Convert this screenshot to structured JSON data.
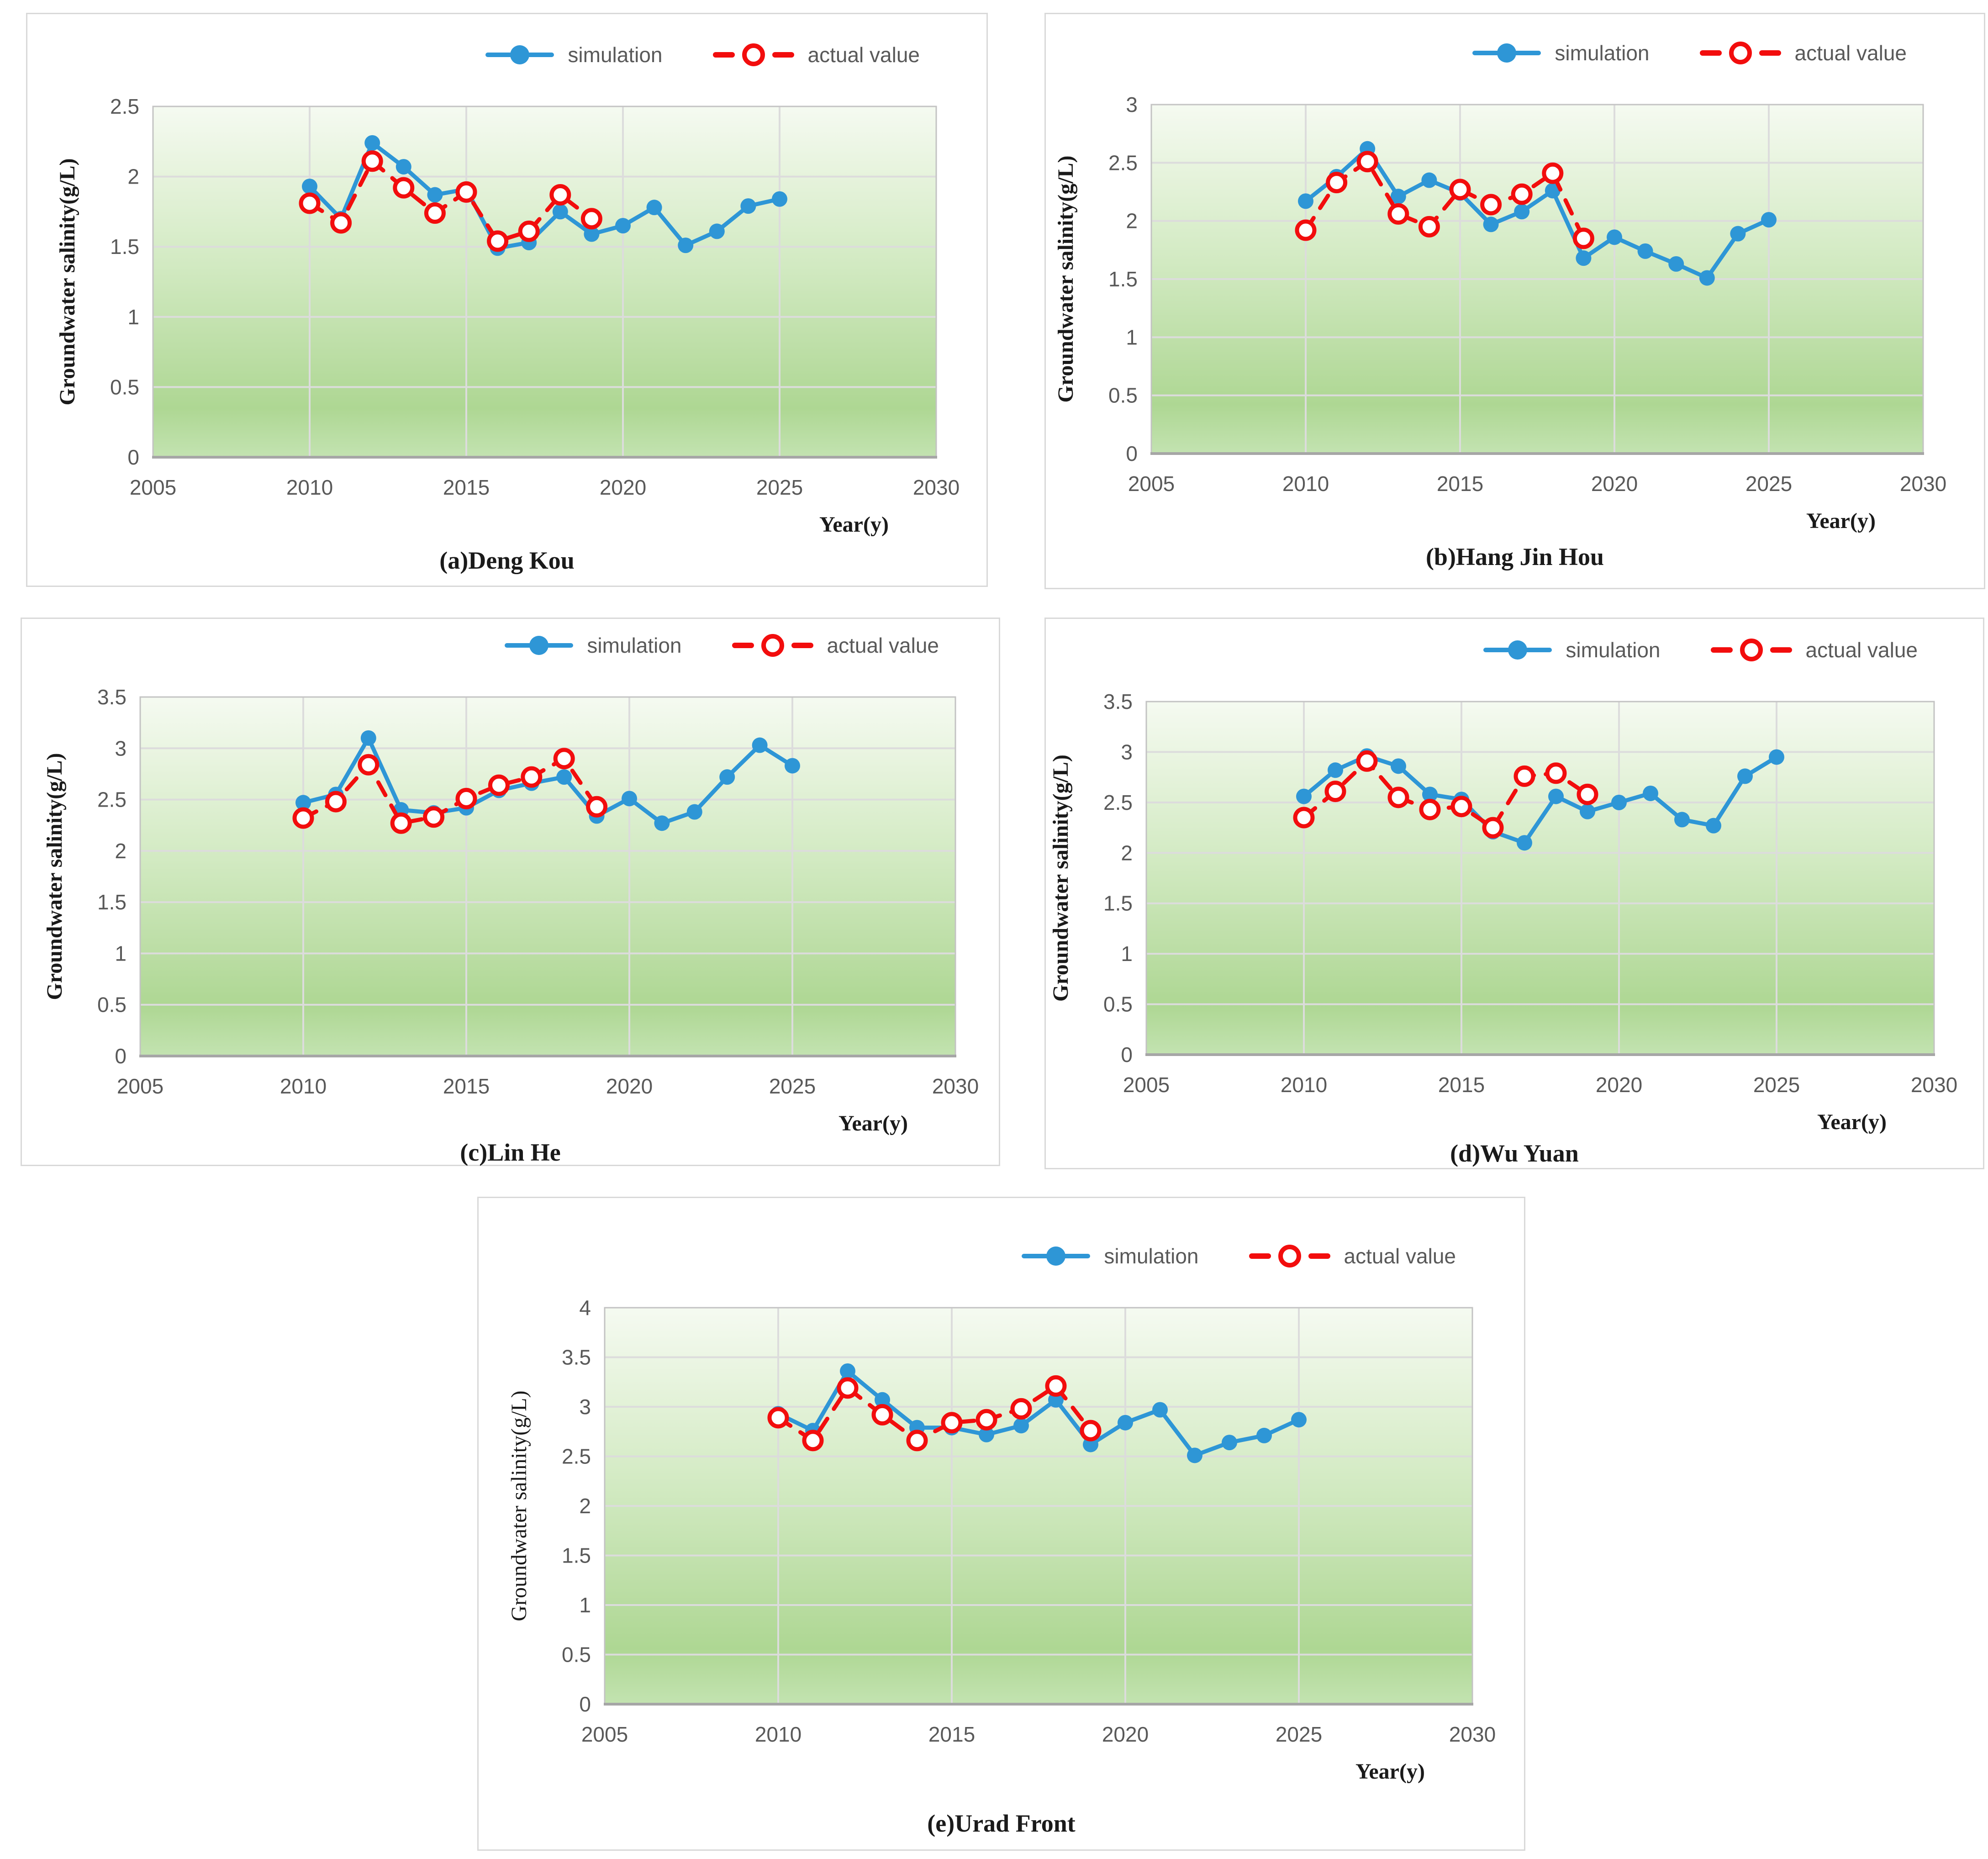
{
  "legend": {
    "simulation_label": "simulation",
    "actual_label": "actual value"
  },
  "colors": {
    "simulation": "#2e96d6",
    "actual": "#f20d0d",
    "grid": "#dcdcdc",
    "plot_border": "#c3c3c3",
    "axis_line": "#a6a6a6",
    "tick_text": "#595959",
    "legend_text": "#595959",
    "plot_bg_top": "#f5faf1",
    "plot_bg_bottom": "#aed793"
  },
  "chart_data": [
    {
      "type": "line",
      "caption": "(a)Deng Kou",
      "xlabel": "Year(y)",
      "ylabel": "Groundwater salinity(g/L)",
      "xlim": [
        2005,
        2030
      ],
      "ylim": [
        0,
        2.5
      ],
      "x_ticks": [
        2005,
        2010,
        2015,
        2020,
        2025,
        2030
      ],
      "y_ticks": [
        0,
        0.5,
        1,
        1.5,
        2,
        2.5
      ],
      "y_tick_labels": [
        "0",
        "0.5",
        "1",
        "1.5",
        "2",
        "2.5"
      ],
      "grid": true,
      "legend_position": "top-right",
      "series": [
        {
          "name": "simulation",
          "x": [
            2010,
            2011,
            2012,
            2013,
            2014,
            2015,
            2016,
            2017,
            2018,
            2019,
            2020,
            2021,
            2022,
            2023,
            2024,
            2025
          ],
          "values": [
            1.93,
            1.7,
            2.24,
            2.07,
            1.87,
            1.91,
            1.49,
            1.53,
            1.75,
            1.59,
            1.65,
            1.78,
            1.51,
            1.61,
            1.79,
            1.84
          ]
        },
        {
          "name": "actual value",
          "x": [
            2010,
            2011,
            2012,
            2013,
            2014,
            2015,
            2016,
            2017,
            2018,
            2019
          ],
          "values": [
            1.81,
            1.67,
            2.11,
            1.92,
            1.74,
            1.89,
            1.54,
            1.61,
            1.87,
            1.7
          ]
        }
      ]
    },
    {
      "type": "line",
      "caption": "(b)Hang Jin Hou",
      "xlabel": "Year(y)",
      "ylabel": "Groundwater salinity(g/L)",
      "xlim": [
        2005,
        2030
      ],
      "ylim": [
        0,
        3
      ],
      "x_ticks": [
        2005,
        2010,
        2015,
        2020,
        2025,
        2030
      ],
      "y_ticks": [
        0,
        0.5,
        1,
        1.5,
        2,
        2.5,
        3
      ],
      "y_tick_labels": [
        "0",
        "0.5",
        "1",
        "1.5",
        "2",
        "2.5",
        "3"
      ],
      "grid": true,
      "legend_position": "top-right",
      "series": [
        {
          "name": "simulation",
          "x": [
            2010,
            2011,
            2012,
            2013,
            2014,
            2015,
            2016,
            2017,
            2018,
            2019,
            2020,
            2021,
            2022,
            2023,
            2024,
            2025
          ],
          "values": [
            2.17,
            2.38,
            2.62,
            2.21,
            2.35,
            2.24,
            1.97,
            2.08,
            2.26,
            1.68,
            1.86,
            1.74,
            1.63,
            1.51,
            1.89,
            2.01
          ]
        },
        {
          "name": "actual value",
          "x": [
            2010,
            2011,
            2012,
            2013,
            2014,
            2015,
            2016,
            2017,
            2018,
            2019
          ],
          "values": [
            1.92,
            2.33,
            2.51,
            2.06,
            1.95,
            2.27,
            2.14,
            2.23,
            2.41,
            1.85
          ]
        }
      ]
    },
    {
      "type": "line",
      "caption": "(c)Lin He",
      "xlabel": "Year(y)",
      "ylabel": "Groundwater salinity(g/L)",
      "xlim": [
        2005,
        2030
      ],
      "ylim": [
        0,
        3.5
      ],
      "x_ticks": [
        2005,
        2010,
        2015,
        2020,
        2025,
        2030
      ],
      "y_ticks": [
        0,
        0.5,
        1,
        1.5,
        2,
        2.5,
        3,
        3.5
      ],
      "y_tick_labels": [
        "0",
        "0.5",
        "1",
        "1.5",
        "2",
        "2.5",
        "3",
        "3.5"
      ],
      "grid": true,
      "legend_position": "top-right",
      "series": [
        {
          "name": "simulation",
          "x": [
            2010,
            2011,
            2012,
            2013,
            2014,
            2015,
            2016,
            2017,
            2018,
            2019,
            2020,
            2021,
            2022,
            2023,
            2024,
            2025
          ],
          "values": [
            2.47,
            2.55,
            3.1,
            2.4,
            2.37,
            2.42,
            2.59,
            2.66,
            2.72,
            2.34,
            2.51,
            2.27,
            2.38,
            2.72,
            3.03,
            2.83
          ]
        },
        {
          "name": "actual value",
          "x": [
            2010,
            2011,
            2012,
            2013,
            2014,
            2015,
            2016,
            2017,
            2018,
            2019
          ],
          "values": [
            2.32,
            2.48,
            2.84,
            2.27,
            2.33,
            2.51,
            2.64,
            2.72,
            2.9,
            2.43
          ]
        }
      ]
    },
    {
      "type": "line",
      "caption": "(d)Wu Yuan",
      "xlabel": "Year(y)",
      "ylabel": "Groundwater salinity(g/L)",
      "xlim": [
        2005,
        2030
      ],
      "ylim": [
        0,
        3.5
      ],
      "x_ticks": [
        2005,
        2010,
        2015,
        2020,
        2025,
        2030
      ],
      "y_ticks": [
        0,
        0.5,
        1,
        1.5,
        2,
        2.5,
        3,
        3.5
      ],
      "y_tick_labels": [
        "0",
        "0.5",
        "1",
        "1.5",
        "2",
        "2.5",
        "3",
        "3.5"
      ],
      "grid": true,
      "legend_position": "top-right",
      "series": [
        {
          "name": "simulation",
          "x": [
            2010,
            2011,
            2012,
            2013,
            2014,
            2015,
            2016,
            2017,
            2018,
            2019,
            2020,
            2021,
            2022,
            2023,
            2024,
            2025
          ],
          "values": [
            2.56,
            2.82,
            2.96,
            2.86,
            2.58,
            2.53,
            2.21,
            2.1,
            2.56,
            2.41,
            2.5,
            2.59,
            2.33,
            2.27,
            2.76,
            2.95
          ]
        },
        {
          "name": "actual value",
          "x": [
            2010,
            2011,
            2012,
            2013,
            2014,
            2015,
            2016,
            2017,
            2018,
            2019
          ],
          "values": [
            2.35,
            2.61,
            2.91,
            2.55,
            2.43,
            2.46,
            2.25,
            2.76,
            2.79,
            2.58
          ]
        }
      ]
    },
    {
      "type": "line",
      "caption": "(e)Urad Front",
      "xlabel": "Year(y)",
      "ylabel": "Groundwater salinity(g/L)",
      "xlim": [
        2005,
        2030
      ],
      "ylim": [
        0,
        4
      ],
      "x_ticks": [
        2005,
        2010,
        2015,
        2020,
        2025,
        2030
      ],
      "y_ticks": [
        0,
        0.5,
        1,
        1.5,
        2,
        2.5,
        3,
        3.5,
        4
      ],
      "y_tick_labels": [
        "0",
        "0.5",
        "1",
        "1.5",
        "2",
        "2.5",
        "3",
        "3.5",
        "4"
      ],
      "grid": true,
      "legend_position": "top-right",
      "series": [
        {
          "name": "simulation",
          "x": [
            2010,
            2011,
            2012,
            2013,
            2014,
            2015,
            2016,
            2017,
            2018,
            2019,
            2020,
            2021,
            2022,
            2023,
            2024,
            2025
          ],
          "values": [
            2.93,
            2.76,
            3.36,
            3.07,
            2.79,
            2.79,
            2.72,
            2.81,
            3.07,
            2.62,
            2.84,
            2.97,
            2.51,
            2.64,
            2.71,
            2.87
          ]
        },
        {
          "name": "actual value",
          "x": [
            2010,
            2011,
            2012,
            2013,
            2014,
            2015,
            2016,
            2017,
            2018,
            2019
          ],
          "values": [
            2.89,
            2.66,
            3.19,
            2.92,
            2.66,
            2.84,
            2.87,
            2.98,
            3.21,
            2.76
          ]
        }
      ]
    }
  ]
}
